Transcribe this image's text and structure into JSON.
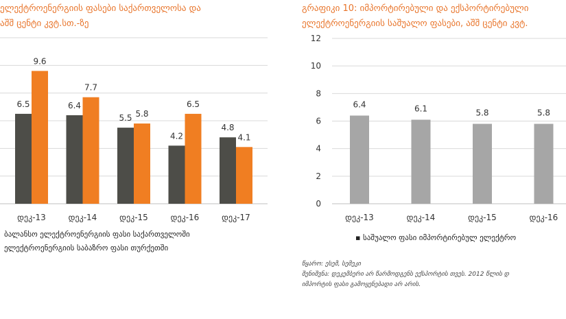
{
  "left": {
    "title_lines": [
      "ელექტროენერგიის ფასები საქართველოსა და",
      "აშშ ცენტი კვტ.სთ.-ზე"
    ],
    "legend_lines": [
      "ბალანსო ელექტროენერგიის ფასი საქართველოში",
      "ელექტროენერგიის საბაზრო ფასი თურქეთში"
    ]
  },
  "right": {
    "title_lines": [
      "გრაფიკი 10: იმპორტირებული და ექსპორტირებული",
      "ელექტროენერგიის საშუალო ფასები, აშშ ცენტი კვტ."
    ],
    "legend": "▪ საშუალო ფასი იმპორტირებულ ელექტრო",
    "source_lines": [
      "წყარო: ესემ, სემეკი",
      "შენიშვნა: დეკემბერი არ წარმოდგენს ექსპორტის თვეს. 2012 წლის დ",
      "იმპორტის ფასი გამოყენებადი არ არის."
    ]
  },
  "colors": {
    "dark": "#4d4d48",
    "orange": "#f07e22",
    "gray": "#a6a6a6",
    "grid": "#d9d9d9",
    "axis": "#bfbfbf"
  },
  "chart_data": [
    {
      "type": "bar",
      "categories": [
        "დეკ-13",
        "დეკ-14",
        "დეკ-15",
        "დეკ-16",
        "დეკ-17"
      ],
      "series": [
        {
          "values": [
            6.5,
            6.4,
            5.5,
            4.2,
            4.8
          ]
        },
        {
          "values": [
            9.6,
            7.7,
            5.8,
            6.5,
            4.1
          ]
        }
      ],
      "ylim": [
        0,
        12
      ],
      "grid": true,
      "legend": "bottom"
    },
    {
      "type": "bar",
      "categories": [
        "დეკ-13",
        "დეკ-14",
        "დეკ-15",
        "დეკ-16"
      ],
      "series": [
        {
          "name": "საშუალო ფასი იმპორტირებულ ელექტრო",
          "values": [
            6.4,
            6.1,
            5.8,
            5.8
          ]
        }
      ],
      "yticks": [
        0,
        2,
        4,
        6,
        8,
        10,
        12
      ],
      "ylim": [
        0,
        12
      ],
      "grid": true,
      "legend": "bottom"
    }
  ]
}
